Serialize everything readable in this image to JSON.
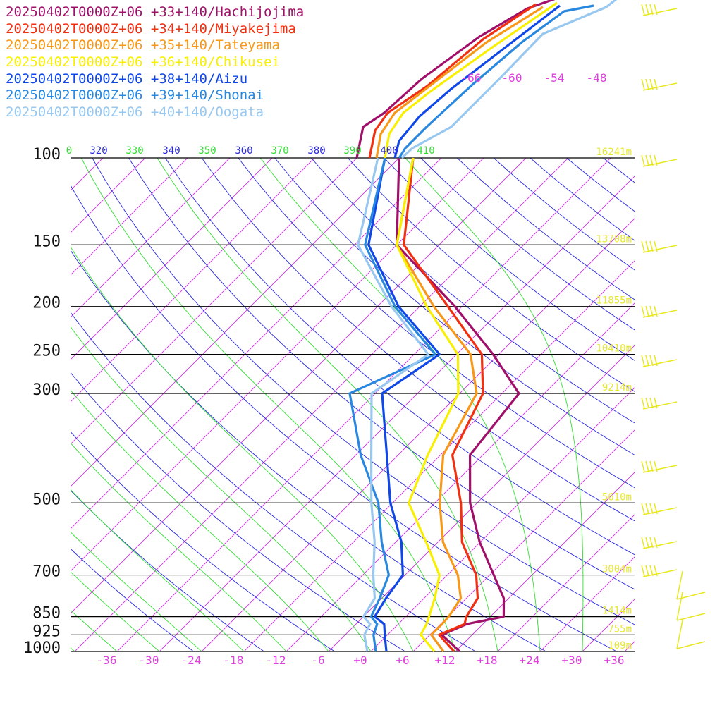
{
  "chart_data": {
    "type": "line",
    "subtype": "skew-T log-P sounding",
    "series": [
      {
        "name": "20250402T0000Z+06 +33+140/Hachijojima",
        "color": "#a0106a",
        "points": [
          [
            1000,
            14.6
          ],
          [
            925,
            9.7
          ],
          [
            880,
            11.7
          ],
          [
            850,
            15.9
          ],
          [
            780,
            13.3
          ],
          [
            700,
            8.6
          ],
          [
            600,
            1.9
          ],
          [
            500,
            -5.0
          ],
          [
            400,
            -11.8
          ],
          [
            300,
            -13.6
          ],
          [
            250,
            -22.8
          ],
          [
            200,
            -35.0
          ],
          [
            150,
            -52.0
          ],
          [
            100,
            -64.0
          ]
        ]
      },
      {
        "name": "20250402T0000Z+06 +34+140/Miyakejima",
        "color": "#f03010",
        "points": [
          [
            1000,
            13.8
          ],
          [
            925,
            9.3
          ],
          [
            880,
            11.4
          ],
          [
            850,
            10.6
          ],
          [
            780,
            9.6
          ],
          [
            700,
            6.1
          ],
          [
            600,
            -0.6
          ],
          [
            500,
            -6.3
          ],
          [
            400,
            -14.3
          ],
          [
            300,
            -18.7
          ],
          [
            250,
            -24.4
          ],
          [
            200,
            -36.0
          ],
          [
            150,
            -51.0
          ],
          [
            100,
            -62.0
          ]
        ]
      },
      {
        "name": "20250402T0000Z+06 +35+140/Tateyama",
        "color": "#f89818",
        "points": [
          [
            1000,
            12.3
          ],
          [
            925,
            8.2
          ],
          [
            880,
            8.2
          ],
          [
            850,
            8.1
          ],
          [
            780,
            7.2
          ],
          [
            700,
            3.5
          ],
          [
            600,
            -3.3
          ],
          [
            500,
            -9.3
          ],
          [
            400,
            -15.6
          ],
          [
            300,
            -19.6
          ],
          [
            250,
            -26.0
          ],
          [
            200,
            -38.0
          ],
          [
            150,
            -52.0
          ],
          [
            100,
            -62.0
          ]
        ]
      },
      {
        "name": "20250402T0000Z+06 +36+140/Chikusei",
        "color": "#f8f000",
        "points": [
          [
            1000,
            11.0
          ],
          [
            925,
            6.7
          ],
          [
            880,
            6.0
          ],
          [
            850,
            5.3
          ],
          [
            780,
            3.5
          ],
          [
            700,
            0.9
          ],
          [
            600,
            -5.7
          ],
          [
            500,
            -13.7
          ],
          [
            400,
            -17.8
          ],
          [
            300,
            -22.2
          ],
          [
            250,
            -27.8
          ],
          [
            200,
            -39.0
          ],
          [
            150,
            -52.0
          ],
          [
            100,
            -62.0
          ]
        ]
      },
      {
        "name": "20250402T0000Z+06 +38+140/Aizu",
        "color": "#1048e8",
        "points": [
          [
            1000,
            4.2
          ],
          [
            925,
            1.6
          ],
          [
            880,
            0.0
          ],
          [
            850,
            -2.4
          ],
          [
            780,
            -3.4
          ],
          [
            700,
            -4.3
          ],
          [
            600,
            -9.2
          ],
          [
            500,
            -16.3
          ],
          [
            400,
            -23.6
          ],
          [
            300,
            -33.0
          ],
          [
            250,
            -30.4
          ],
          [
            200,
            -43.0
          ],
          [
            150,
            -56.0
          ],
          [
            100,
            -66.0
          ]
        ]
      },
      {
        "name": "20250402T0000Z+06 +39+140/Shonai",
        "color": "#2888e0",
        "points": [
          [
            1000,
            2.7
          ],
          [
            925,
            0.0
          ],
          [
            880,
            -1.0
          ],
          [
            850,
            -2.9
          ],
          [
            780,
            -4.3
          ],
          [
            700,
            -6.3
          ],
          [
            600,
            -12.0
          ],
          [
            500,
            -18.0
          ],
          [
            400,
            -27.3
          ],
          [
            300,
            -37.6
          ],
          [
            250,
            -31.0
          ],
          [
            200,
            -43.5
          ],
          [
            150,
            -56.5
          ],
          [
            100,
            -66.0
          ]
        ]
      },
      {
        "name": "20250402T0000Z+06 +40+140/Oogata",
        "color": "#98c8f0",
        "points": [
          [
            1000,
            1.5
          ],
          [
            925,
            -1.3
          ],
          [
            880,
            -2.0
          ],
          [
            850,
            -4.0
          ],
          [
            780,
            -5.0
          ],
          [
            700,
            -8.5
          ],
          [
            600,
            -13.0
          ],
          [
            500,
            -19.0
          ],
          [
            400,
            -25.8
          ],
          [
            300,
            -34.5
          ],
          [
            250,
            -32.0
          ],
          [
            200,
            -44.0
          ],
          [
            150,
            -57.5
          ],
          [
            100,
            -67.0
          ]
        ]
      }
    ],
    "pressure_levels": [
      100,
      150,
      200,
      250,
      300,
      500,
      700,
      850,
      925,
      1000
    ],
    "height_labels": [
      {
        "p": 100,
        "text": "16241m"
      },
      {
        "p": 150,
        "text": "13708m"
      },
      {
        "p": 200,
        "text": "11855m"
      },
      {
        "p": 250,
        "text": "10410m"
      },
      {
        "p": 300,
        "text": "9214m"
      },
      {
        "p": 500,
        "text": "5610m"
      },
      {
        "p": 700,
        "text": "3004m"
      },
      {
        "p": 850,
        "text": "1414m"
      },
      {
        "p": 925,
        "text": "755m"
      },
      {
        "p": 1000,
        "text": "109m"
      }
    ],
    "x_ticks": [
      "-36",
      "-30",
      "-24",
      "-18",
      "-12",
      "-6",
      "+0",
      "+6",
      "+12",
      "+18",
      "+24",
      "+30",
      "+36"
    ],
    "x_tick_values": [
      -36,
      -30,
      -24,
      -18,
      -12,
      -6,
      0,
      6,
      12,
      18,
      24,
      30,
      36
    ],
    "upper_temp_labels": [
      "-66",
      "-60",
      "-54",
      "-48"
    ],
    "theta_labels": [
      "0",
      "320",
      "330",
      "340",
      "350",
      "360",
      "370",
      "380",
      "390",
      "400",
      "410"
    ],
    "xlim": [
      -40,
      40
    ],
    "ylim": [
      1000,
      100
    ],
    "yscale": "log",
    "colors": {
      "isotherm": "#d030e8",
      "dry_adiabat": "#2828e0",
      "moist_adiabat": "#30e030",
      "height_label": "#e8e830",
      "barb": "#e8e820",
      "tick_label": "#e040e0"
    }
  }
}
